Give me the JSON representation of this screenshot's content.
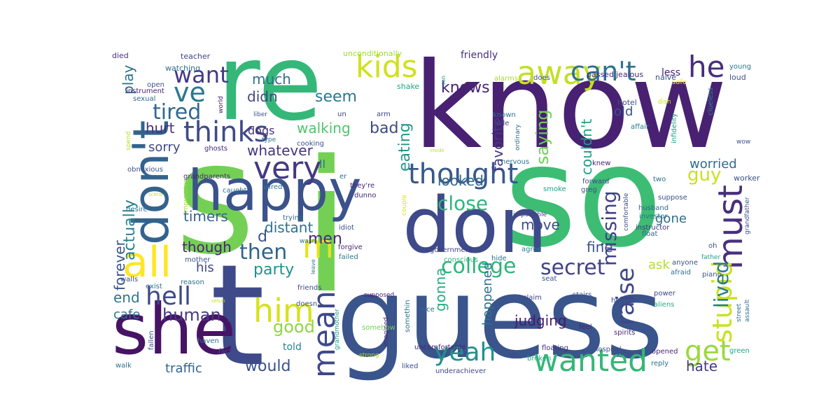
{
  "words": [
    {
      "text": "i",
      "color": "#74d055"
    },
    {
      "text": "know",
      "color": "#482172"
    },
    {
      "text": "so",
      "color": "#3dbc74"
    },
    {
      "text": "guess",
      "color": "#3a548c"
    },
    {
      "text": "s",
      "color": "#74d055"
    },
    {
      "text": "t",
      "color": "#3e4a89"
    },
    {
      "text": "re",
      "color": "#35b779"
    },
    {
      "text": "don",
      "color": "#3e4a89"
    },
    {
      "text": "she",
      "color": "#471365"
    },
    {
      "text": "happy",
      "color": "#3b528b"
    },
    {
      "text": "don't",
      "color": "#33638d"
    },
    {
      "text": "want",
      "color": "#443983"
    },
    {
      "text": "ve",
      "color": "#2a788e"
    },
    {
      "text": "all",
      "color": "#fde725"
    },
    {
      "text": "m",
      "color": "#e5e419"
    },
    {
      "text": "kids",
      "color": "#d0e11c"
    },
    {
      "text": "away",
      "color": "#c2df23"
    },
    {
      "text": "can't",
      "color": "#2c728e"
    },
    {
      "text": "he",
      "color": "#472d7b"
    },
    {
      "text": "tired",
      "color": "#31688e"
    },
    {
      "text": "thinks",
      "color": "#3e4a89"
    },
    {
      "text": "very",
      "color": "#453882"
    },
    {
      "text": "thought",
      "color": "#38588c"
    },
    {
      "text": "must",
      "color": "#472f7d"
    },
    {
      "text": "wanted",
      "color": "#35b779"
    },
    {
      "text": "yeah",
      "color": "#21918c"
    },
    {
      "text": "mean",
      "color": "#3e4989"
    },
    {
      "text": "him",
      "color": "#d5e21a"
    },
    {
      "text": "hell",
      "color": "#3e4a89"
    },
    {
      "text": "stupid",
      "color": "#cae11f"
    },
    {
      "text": "get",
      "color": "#9bd93c"
    },
    {
      "text": "college",
      "color": "#2fb47c"
    },
    {
      "text": "secret",
      "color": "#414287"
    },
    {
      "text": "raise",
      "color": "#3f4788"
    },
    {
      "text": "missing",
      "color": "#414287"
    },
    {
      "text": "close",
      "color": "#31b57b"
    },
    {
      "text": "then",
      "color": "#33638d"
    },
    {
      "text": "men",
      "color": "#482878"
    },
    {
      "text": "party",
      "color": "#21918c"
    },
    {
      "text": "would",
      "color": "#3b528b"
    },
    {
      "text": "human",
      "color": "#443a83"
    },
    {
      "text": "good",
      "color": "#8ed645"
    },
    {
      "text": "end",
      "color": "#2a788e"
    },
    {
      "text": "cafe",
      "color": "#2c728e"
    },
    {
      "text": "forever",
      "color": "#3b528b"
    },
    {
      "text": "actually",
      "color": "#26828e"
    },
    {
      "text": "play",
      "color": "#2c728e"
    },
    {
      "text": "walking",
      "color": "#50c46a"
    },
    {
      "text": "bad",
      "color": "#3e4a89"
    },
    {
      "text": "eating",
      "color": "#1f998a"
    },
    {
      "text": "seem",
      "color": "#2a788e"
    },
    {
      "text": "much",
      "color": "#2e6e8e"
    },
    {
      "text": "didn",
      "color": "#414487"
    },
    {
      "text": "knows",
      "color": "#482475"
    },
    {
      "text": "looked",
      "color": "#31688e"
    },
    {
      "text": "favorite",
      "color": "#443983"
    },
    {
      "text": "saying",
      "color": "#6ece58"
    },
    {
      "text": "couldn't",
      "color": "#1f9e89"
    },
    {
      "text": "guy",
      "color": "#c8e020"
    },
    {
      "text": "worried",
      "color": "#2e6e8e"
    },
    {
      "text": "old",
      "color": "#3b528b"
    },
    {
      "text": "gone",
      "color": "#2e6e8e"
    },
    {
      "text": "move",
      "color": "#3e4a89"
    },
    {
      "text": "fine",
      "color": "#3a538b"
    },
    {
      "text": "ask",
      "color": "#b5de2b"
    },
    {
      "text": "lived",
      "color": "#287c8e"
    },
    {
      "text": "hate",
      "color": "#443a83"
    },
    {
      "text": "judging",
      "color": "#481b6d"
    },
    {
      "text": "happened",
      "color": "#2c728e"
    },
    {
      "text": "gonna",
      "color": "#27ad81"
    },
    {
      "text": "whatever",
      "color": "#453581"
    },
    {
      "text": "sorry",
      "color": "#3e4989"
    },
    {
      "text": "hurt",
      "color": "#46327e"
    },
    {
      "text": "timers",
      "color": "#33638d"
    },
    {
      "text": "distant",
      "color": "#2c728e"
    },
    {
      "text": "d",
      "color": "#3b528b"
    },
    {
      "text": "though",
      "color": "#482374"
    },
    {
      "text": "his",
      "color": "#3f4788"
    },
    {
      "text": "traffic",
      "color": "#32658e"
    },
    {
      "text": "dogs",
      "color": "#46317e"
    },
    {
      "text": "less",
      "color": "#482576"
    },
    {
      "text": "ll",
      "color": "#2e6e8e"
    },
    {
      "text": "told",
      "color": "#25858e"
    },
    {
      "text": "friendly",
      "color": "#46307e"
    },
    {
      "text": "unconditionally",
      "color": "#9fda3a"
    },
    {
      "text": "died",
      "color": "#46337f"
    },
    {
      "text": "teacher",
      "color": "#414487"
    },
    {
      "text": "watching",
      "color": "#2d708e"
    },
    {
      "text": "open",
      "color": "#3b528b"
    },
    {
      "text": "instrument",
      "color": "#481f70"
    },
    {
      "text": "sexual",
      "color": "#31688e"
    },
    {
      "text": "world",
      "color": "#481769"
    },
    {
      "text": "liber",
      "color": "#3b528b"
    },
    {
      "text": "shake",
      "color": "#20a486"
    },
    {
      "text": "arm",
      "color": "#3f4788"
    },
    {
      "text": "un",
      "color": "#414487"
    },
    {
      "text": "alarms",
      "color": "#a5db36"
    },
    {
      "text": "does",
      "color": "#3b528b"
    },
    {
      "text": "known",
      "color": "#2c728e"
    },
    {
      "text": "able",
      "color": "#404588"
    },
    {
      "text": "passed",
      "color": "#472c7a"
    },
    {
      "text": "jealous",
      "color": "#482677"
    },
    {
      "text": "naive",
      "color": "#3b528b"
    },
    {
      "text": "loud",
      "color": "#3b528b"
    },
    {
      "text": "young",
      "color": "#2a788e"
    },
    {
      "text": "safe",
      "color": "#fde725"
    },
    {
      "text": "hotel",
      "color": "#3b528b"
    },
    {
      "text": "clueless",
      "color": "#25858e"
    },
    {
      "text": "affair",
      "color": "#277f8e"
    },
    {
      "text": "infidelity",
      "color": "#1f9a8a"
    },
    {
      "text": "wow",
      "color": "#3b528b"
    },
    {
      "text": "ordinary",
      "color": "#31688e"
    },
    {
      "text": "nervous",
      "color": "#2c728e"
    },
    {
      "text": "dish",
      "color": "#c0df25"
    },
    {
      "text": "inside",
      "color": "#bddf26"
    },
    {
      "text": "son",
      "color": "#1e9b8a"
    },
    {
      "text": "knew",
      "color": "#482173"
    },
    {
      "text": "two",
      "color": "#2e6e8e"
    },
    {
      "text": "suppose",
      "color": "#3b528b"
    },
    {
      "text": "husband",
      "color": "#31688e"
    },
    {
      "text": "grandfather",
      "color": "#3e4a89"
    },
    {
      "text": "worker",
      "color": "#3b528b"
    },
    {
      "text": "greg",
      "color": "#3b528b"
    },
    {
      "text": "forward",
      "color": "#3e4a89"
    },
    {
      "text": "smoke",
      "color": "#1f9e89"
    },
    {
      "text": "investor",
      "color": "#2c728e"
    },
    {
      "text": "impossible",
      "color": "#414487"
    },
    {
      "text": "instructor",
      "color": "#453781"
    },
    {
      "text": "comfortable",
      "color": "#3e4a89"
    },
    {
      "text": "float",
      "color": "#33638d"
    },
    {
      "text": "oh",
      "color": "#3b528b"
    },
    {
      "text": "father",
      "color": "#1f9e89"
    },
    {
      "text": "piano",
      "color": "#3b528b"
    },
    {
      "text": "anyone",
      "color": "#3b528b"
    },
    {
      "text": "afraid",
      "color": "#2c728e"
    },
    {
      "text": "hide",
      "color": "#2c728e"
    },
    {
      "text": "stairs",
      "color": "#3b528b"
    },
    {
      "text": "agree",
      "color": "#26828e"
    },
    {
      "text": "government",
      "color": "#414487"
    },
    {
      "text": "conscious",
      "color": "#2fb47c"
    },
    {
      "text": "seat",
      "color": "#3b528b"
    },
    {
      "text": "claim",
      "color": "#3e4989"
    },
    {
      "text": "power",
      "color": "#414487"
    },
    {
      "text": "aliens",
      "color": "#26ad81"
    },
    {
      "text": "hugger",
      "color": "#3e4a89"
    },
    {
      "text": "street",
      "color": "#2c728e"
    },
    {
      "text": "assault",
      "color": "#2d708e"
    },
    {
      "text": "spirits",
      "color": "#482878"
    },
    {
      "text": "yoga",
      "color": "#3b528b"
    },
    {
      "text": "feel",
      "color": "#482576"
    },
    {
      "text": "hospital",
      "color": "#3b528b"
    },
    {
      "text": "opened",
      "color": "#482677"
    },
    {
      "text": "green",
      "color": "#20a486"
    },
    {
      "text": "reply",
      "color": "#2c728e"
    },
    {
      "text": "floating",
      "color": "#472d7b"
    },
    {
      "text": "broken",
      "color": "#26ad81"
    },
    {
      "text": "uh",
      "color": "#3e4a89"
    },
    {
      "text": "underachiever",
      "color": "#3e4a89"
    },
    {
      "text": "liked",
      "color": "#3b528b"
    },
    {
      "text": "uncomfortable",
      "color": "#482576"
    },
    {
      "text": "somethin",
      "color": "#2c728e"
    },
    {
      "text": "somehow",
      "color": "#6ece58"
    },
    {
      "text": "strong",
      "color": "#b8de29"
    },
    {
      "text": "imagined",
      "color": "#482878"
    },
    {
      "text": "nice",
      "color": "#2e6e8e"
    },
    {
      "text": "grandmother",
      "color": "#1f9e89"
    },
    {
      "text": "supposed",
      "color": "#482173"
    },
    {
      "text": "doesn",
      "color": "#3b528b"
    },
    {
      "text": "friends",
      "color": "#3e4a89"
    },
    {
      "text": "failed",
      "color": "#2a788e"
    },
    {
      "text": "forgive",
      "color": "#482878"
    },
    {
      "text": "idiot",
      "color": "#3b528b"
    },
    {
      "text": "wasn",
      "color": "#2c728e"
    },
    {
      "text": "trying",
      "color": "#2e6e8e"
    },
    {
      "text": "couple",
      "color": "#d8e219"
    },
    {
      "text": "dunno",
      "color": "#482677"
    },
    {
      "text": "they're",
      "color": "#482677"
    },
    {
      "text": "er",
      "color": "#2c728e"
    },
    {
      "text": "wired",
      "color": "#2c728e"
    },
    {
      "text": "caught",
      "color": "#2c728e"
    },
    {
      "text": "grandparents",
      "color": "#482677"
    },
    {
      "text": "obnoxious",
      "color": "#3b528b"
    },
    {
      "text": "ghosts",
      "color": "#482878"
    },
    {
      "text": "cooking",
      "color": "#3b528b"
    },
    {
      "text": "type",
      "color": "#2c728e"
    },
    {
      "text": "spend",
      "color": "#b5de2b"
    },
    {
      "text": "impressive",
      "color": "#9fda3a"
    },
    {
      "text": "scene",
      "color": "#c2df23"
    },
    {
      "text": "desire",
      "color": "#2c728e"
    },
    {
      "text": "mother",
      "color": "#3b528b"
    },
    {
      "text": "leave",
      "color": "#2c728e"
    },
    {
      "text": "reason",
      "color": "#2c728e"
    },
    {
      "text": "walls",
      "color": "#3b528b"
    },
    {
      "text": "exist",
      "color": "#2c728e"
    },
    {
      "text": "setup",
      "color": "#c2df23"
    },
    {
      "text": "kind",
      "color": "#3b528b"
    },
    {
      "text": "haven",
      "color": "#2c728e"
    },
    {
      "text": "fact",
      "color": "#3b528b"
    },
    {
      "text": "walk",
      "color": "#2c728e"
    },
    {
      "text": "fallen",
      "color": "#3b528b"
    }
  ]
}
